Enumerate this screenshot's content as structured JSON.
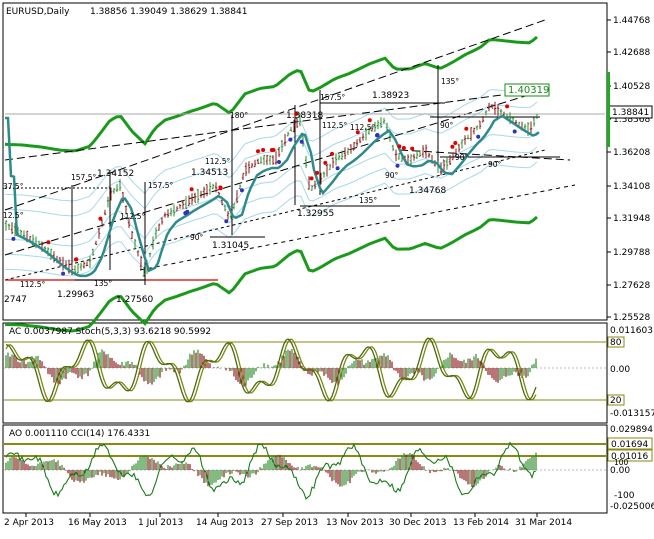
{
  "main": {
    "title": "EURUSD,Daily",
    "ohlc": "1.38856 1.39049 1.38629 1.38841",
    "price_axis": [
      "1.44768",
      "1.42688",
      "1.40528",
      "1.38368",
      "1.36208",
      "1.34108",
      "1.31948",
      "1.29788",
      "1.27628",
      "1.25528"
    ],
    "last_price": "1.38841",
    "green_marker": "1.40319",
    "price_labels": [
      "1.38318",
      "1.38923",
      "1.34152",
      "1.34513",
      "1.29963",
      "1.27560",
      "1.31045",
      "1.32955",
      "1.34768",
      "2747"
    ],
    "angle_labels": [
      "135°",
      "157.5°",
      "180°",
      "157.5°",
      "157.5°",
      "112.5°",
      "112.5°",
      "112.5°",
      "112.5°",
      "90°",
      "90°",
      "90°",
      "135°",
      "135°",
      "90°",
      "90°",
      "112.5°",
      "37.5°",
      "12.5°"
    ]
  },
  "ac_panel": {
    "title": "AC 0.0037987  Stoch(5,3,3) 93.6218 90.5992",
    "axis": [
      "0.011603",
      "0.00",
      "-0.013157"
    ],
    "level_high": "80",
    "level_low": "20"
  },
  "ao_panel": {
    "title": "AO 0.001110  CCI(14) 176.4331",
    "axis": [
      "0.029894",
      "0.00",
      "-0.025006"
    ],
    "level_a": "0.01694",
    "level_b": "0.01016",
    "cci_high": "100",
    "cci_low": "-100"
  },
  "date_axis": [
    "2 Apr 2013",
    "16 May 2013",
    "1 Jul 2013",
    "14 Aug 2013",
    "27 Sep 2013",
    "13 Nov 2013",
    "30 Dec 2013",
    "13 Feb 2014",
    "31 Mar 2014"
  ],
  "colors": {
    "bull": "#2e8b2e",
    "bear": "#8b1a1a",
    "ma": "#2e8b8b",
    "envelope": "#1a9a1a",
    "level": "#8a8a10",
    "axisline": "#000000"
  }
}
